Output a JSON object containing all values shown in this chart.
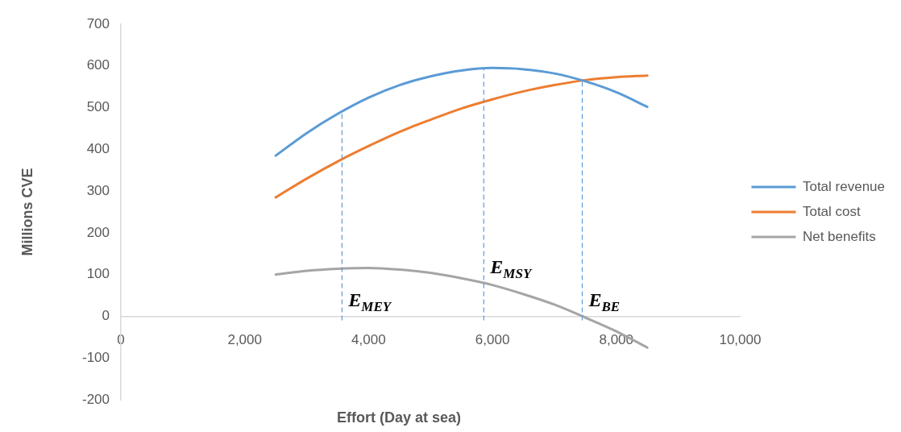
{
  "chart_data": {
    "type": "line",
    "xlabel": "Effort (Day at sea)",
    "ylabel": "Millions CVE",
    "x": [
      2500,
      3000,
      3500,
      4000,
      4500,
      5000,
      5500,
      6000,
      6500,
      7000,
      7500,
      8000,
      8500
    ],
    "series": [
      {
        "name": "Total revenue",
        "color": "#5b9bd5",
        "values": [
          385,
          439,
          485,
          524,
          554,
          575,
          589,
          595,
          592,
          582,
          563,
          537,
          502
        ]
      },
      {
        "name": "Total cost",
        "color": "#ed7d31",
        "values": [
          285,
          330,
          371,
          408,
          442,
          471,
          498,
          520,
          539,
          554,
          566,
          573,
          577
        ]
      },
      {
        "name": "Net benefits",
        "color": "#a5a5a5",
        "values": [
          100,
          109,
          114,
          116,
          112,
          104,
          91,
          75,
          53,
          28,
          -3,
          -36,
          -75
        ]
      }
    ],
    "xlim": [
      0,
      10000
    ],
    "xticks": [
      0,
      {
        "value": 2000,
        "label": "2,000"
      },
      {
        "value": 4000,
        "label": "4,000"
      },
      {
        "value": 6000,
        "label": "6,000"
      },
      {
        "value": 8000,
        "label": "8,000"
      },
      {
        "value": 10000,
        "label": "10,000"
      }
    ],
    "ylim": [
      -200,
      700
    ],
    "yticks": [
      -200,
      -100,
      0,
      100,
      200,
      300,
      400,
      500,
      600,
      700
    ],
    "ref_lines": [
      {
        "axis": "x",
        "value": 3570,
        "label": "E$_{MEY}$",
        "color": "#5b9bd5",
        "line_style": "dashed"
      },
      {
        "axis": "x",
        "value": 5860,
        "label": "E$_{MSY}$",
        "color": "#5b9bd5",
        "line_style": "dashed"
      },
      {
        "axis": "x",
        "value": 7450,
        "label": "E$_{BE}$",
        "color": "#5b9bd5",
        "line_style": "dashed"
      }
    ],
    "grid": false,
    "legend": "right",
    "marker": "none",
    "line_style": "solid"
  }
}
